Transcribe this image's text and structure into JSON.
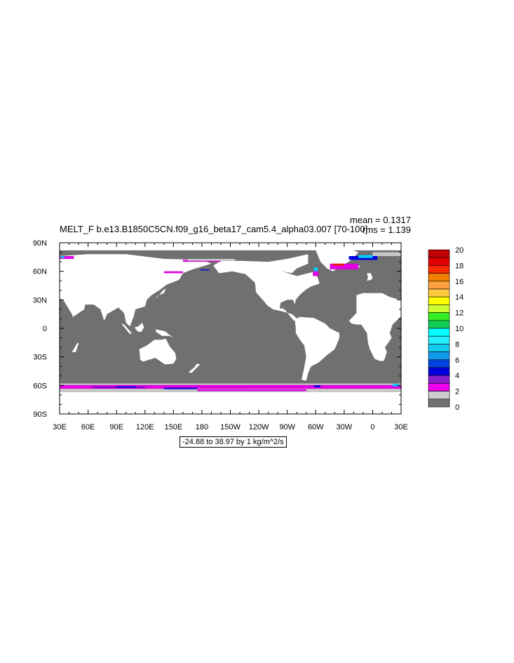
{
  "title": "MELT_F b.e13.B1850C5CN.f09_g16_beta17_cam5.4_alpha03.007 [70-100]",
  "stats": {
    "mean": "mean = 0.1317",
    "rms": "rms = 1.139"
  },
  "info": "-24.88 to 38.97 by 1 kg/m^2/s",
  "map": {
    "projection": "cylindrical equidistant",
    "lon_range": [
      30,
      390
    ],
    "lat_range": [
      -90,
      90
    ],
    "x_ticks": [
      {
        "lon": 30,
        "label": "30E"
      },
      {
        "lon": 60,
        "label": "60E"
      },
      {
        "lon": 90,
        "label": "90E"
      },
      {
        "lon": 120,
        "label": "120E"
      },
      {
        "lon": 150,
        "label": "150E"
      },
      {
        "lon": 180,
        "label": "180"
      },
      {
        "lon": 210,
        "label": "150W"
      },
      {
        "lon": 240,
        "label": "120W"
      },
      {
        "lon": 270,
        "label": "90W"
      },
      {
        "lon": 300,
        "label": "60W"
      },
      {
        "lon": 330,
        "label": "30W"
      },
      {
        "lon": 360,
        "label": "0"
      },
      {
        "lon": 390,
        "label": "30E"
      }
    ],
    "y_ticks": [
      {
        "lat": 90,
        "label": "90N"
      },
      {
        "lat": 60,
        "label": "60N"
      },
      {
        "lat": 30,
        "label": "30N"
      },
      {
        "lat": 0,
        "label": "0"
      },
      {
        "lat": -30,
        "label": "30S"
      },
      {
        "lat": -60,
        "label": "60S"
      },
      {
        "lat": -90,
        "label": "90S"
      }
    ],
    "colors": {
      "land": "#ffffff",
      "ocean": "#707070",
      "ice_edge": "#c8c8c8",
      "melt_low": "#e000e0",
      "melt_mid": "#8800cc",
      "melt_high": "#0000dd",
      "melt_cyan": "#00ccff"
    }
  },
  "colorbar": {
    "labels": [
      "20",
      "18",
      "16",
      "14",
      "12",
      "10",
      "8",
      "6",
      "4",
      "2",
      "0"
    ],
    "colors_top_to_bottom": [
      "#c00000",
      "#e00000",
      "#ff2800",
      "#f08000",
      "#ffa040",
      "#ffc840",
      "#ffff00",
      "#ccff33",
      "#33ee22",
      "#11cc55",
      "#00ffff",
      "#22eeff",
      "#11ccee",
      "#1199ee",
      "#0044dd",
      "#0000dd",
      "#8a1fd0",
      "#ee00ee",
      "#cccccc",
      "#707070"
    ]
  }
}
